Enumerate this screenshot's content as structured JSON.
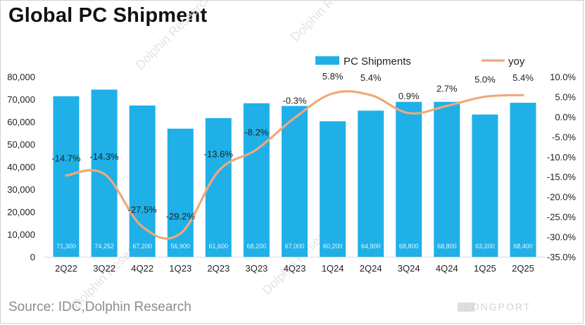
{
  "title": "Global PC Shipment",
  "source": "Source: IDC,Dolphin Research",
  "watermark": {
    "text": "Dolphin Research",
    "brand": "LONGPORT"
  },
  "colors": {
    "bars": "#1FB0E8",
    "line": "#F0A87A",
    "text": "#222222"
  },
  "chart_data": {
    "type": "bar+line",
    "categories": [
      "2Q22",
      "3Q22",
      "4Q22",
      "1Q23",
      "2Q23",
      "3Q23",
      "4Q23",
      "1Q24",
      "2Q24",
      "3Q24",
      "4Q24",
      "1Q25",
      "2Q25"
    ],
    "series": [
      {
        "name": "PC Shipments",
        "type": "bar",
        "axis": "left",
        "values": [
          71300,
          74252,
          67200,
          56900,
          61600,
          68200,
          67000,
          60200,
          64900,
          68800,
          68800,
          63200,
          68400
        ],
        "value_labels": [
          "71,300",
          "74,252",
          "67,200",
          "56,900",
          "61,600",
          "68,200",
          "67,000",
          "60,200",
          "64,900",
          "68,800",
          "68,800",
          "63,200",
          "68,400"
        ]
      },
      {
        "name": "yoy",
        "type": "line",
        "axis": "right",
        "values": [
          -14.7,
          -14.3,
          -27.5,
          -29.2,
          -13.6,
          -8.2,
          -0.3,
          5.8,
          5.4,
          0.9,
          2.7,
          5.0,
          5.4
        ],
        "value_labels": [
          "-14.7%",
          "-14.3%",
          "-27.5%",
          "-29.2%",
          "-13.6%",
          "-8.2%",
          "-0.3%",
          "5.8%",
          "5.4%",
          "0.9%",
          "2.7%",
          "5.0%",
          "5.4%"
        ]
      }
    ],
    "y_left": {
      "min": 0,
      "max": 80000,
      "ticks": [
        "0",
        "10,000",
        "20,000",
        "30,000",
        "40,000",
        "50,000",
        "60,000",
        "70,000",
        "80,000"
      ]
    },
    "y_right": {
      "min": -35,
      "max": 10,
      "ticks": [
        "10.0%",
        "5.0%",
        "0.0%",
        "-5.0%",
        "-10.0%",
        "-15.0%",
        "-20.0%",
        "-25.0%",
        "-30.0%",
        "-35.0%"
      ]
    },
    "legend": [
      "PC Shipments",
      "yoy"
    ],
    "legend_position": "top-right",
    "grid": false
  }
}
